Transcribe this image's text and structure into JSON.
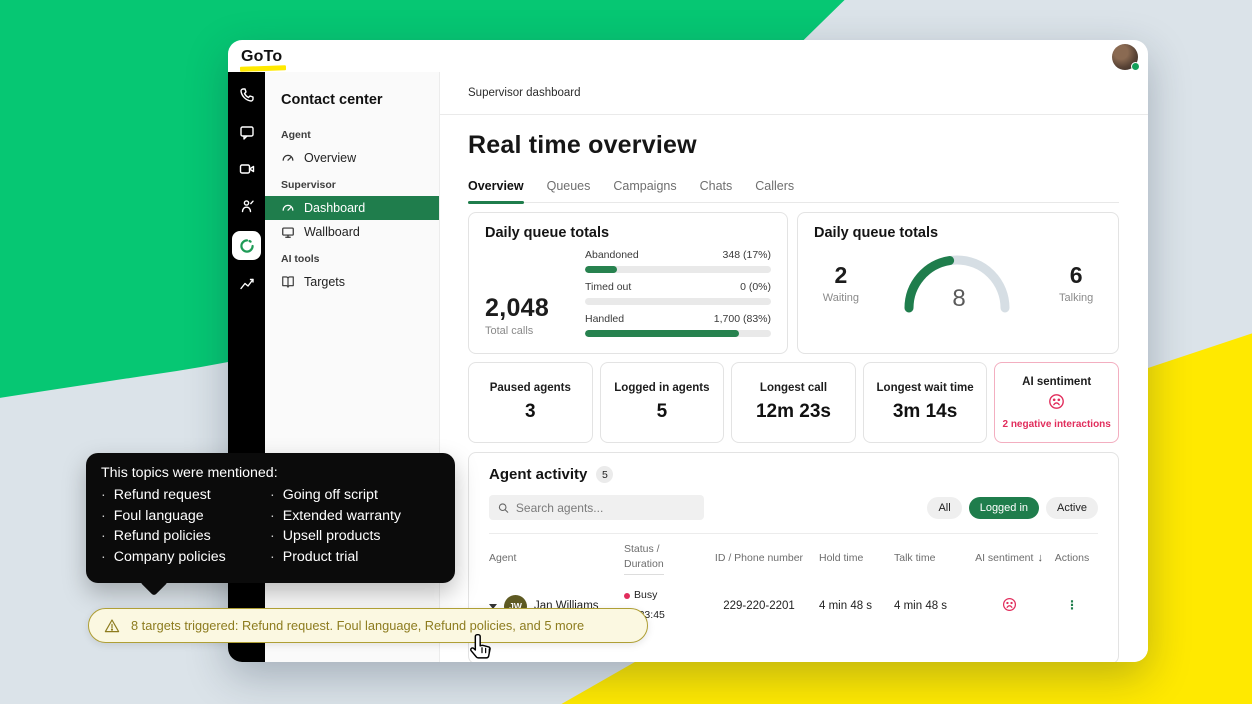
{
  "colors": {
    "brand_green": "#06C773",
    "brand_yellow": "#FFE900",
    "accent_green": "#1F7D4C",
    "pink": "#E12D5C",
    "olive": "#8D7C1F"
  },
  "topbar": {
    "logo_text": "GoTo"
  },
  "nav": {
    "title": "Contact center",
    "section_agent": "Agent",
    "item_overview": "Overview",
    "section_supervisor": "Supervisor",
    "item_dashboard": "Dashboard",
    "item_wallboard": "Wallboard",
    "section_ai_tools": "AI tools",
    "item_targets": "Targets"
  },
  "header": {
    "breadcrumb": "Supervisor dashboard",
    "title": "Real time overview"
  },
  "tabs": [
    {
      "label": "Overview"
    },
    {
      "label": "Queues"
    },
    {
      "label": "Campaigns"
    },
    {
      "label": "Chats"
    },
    {
      "label": "Callers"
    }
  ],
  "queue_totals": {
    "title": "Daily queue totals",
    "total_value": "2,048",
    "total_label": "Total calls",
    "bars": [
      {
        "label": "Abandoned",
        "value": "348 (17%)",
        "pct": 17
      },
      {
        "label": "Timed out",
        "value": "0 (0%)",
        "pct": 0
      },
      {
        "label": "Handled",
        "value": "1,700 (83%)",
        "pct": 83
      }
    ]
  },
  "queue_gauge": {
    "title": "Daily queue totals",
    "waiting_value": "2",
    "waiting_label": "Waiting",
    "gauge_value": "8",
    "gauge_pct": 45,
    "talking_value": "6",
    "talking_label": "Talking"
  },
  "stat_cards": [
    {
      "label": "Paused agents",
      "value": "3"
    },
    {
      "label": "Logged in agents",
      "value": "5"
    },
    {
      "label": "Longest call",
      "value": "12m 23s"
    },
    {
      "label": "Longest wait time",
      "value": "3m 14s"
    }
  ],
  "sentiment_card": {
    "label": "AI sentiment",
    "note": "2 negative interactions"
  },
  "agent_activity": {
    "title": "Agent activity",
    "count": "5",
    "search_placeholder": "Search agents...",
    "filter_all": "All",
    "filter_logged_in": "Logged in",
    "filter_active": "Active",
    "col_agent": "Agent",
    "col_status_1": "Status /",
    "col_status_2": "Duration",
    "col_id": "ID / Phone number",
    "col_hold": "Hold time",
    "col_talk": "Talk time",
    "col_sentiment": "AI sentiment",
    "col_actions": "Actions",
    "sort_arrow": "↓",
    "row": {
      "initials": "JW",
      "name": "Jan Williams",
      "status": "Busy",
      "duration": "01:23:45",
      "phone": "229-220-2201",
      "hold_time": "4 min 48 s",
      "talk_time": "4 min 48 s"
    }
  },
  "tooltip": {
    "title": "This topics were mentioned:",
    "left_items": [
      "Refund request",
      "Foul language",
      "Refund policies",
      "Company policies"
    ],
    "right_items": [
      "Going off script",
      "Extended warranty",
      "Upsell products",
      "Product trial"
    ]
  },
  "banner": {
    "text": "8 targets triggered: Refund request. Foul language, Refund policies, and 5 more"
  }
}
